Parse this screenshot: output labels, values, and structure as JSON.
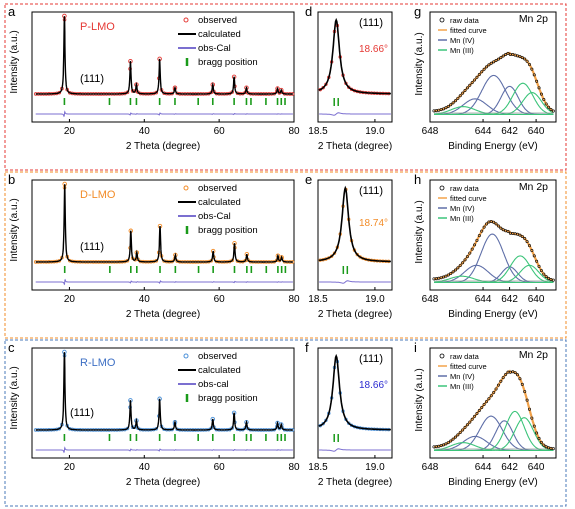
{
  "colors": {
    "frame_top": "#e53935",
    "frame_mid": "#f28c28",
    "frame_bot": "#4a78b8",
    "label_plmo": "#e53935",
    "label_dlmo": "#f28c28",
    "label_rlmo": "#3d6fc4",
    "obs_plmo": "#e53935",
    "obs_dlmo": "#f28c28",
    "obs_rlmo": "#4a90d9",
    "calc": "#000000",
    "diff": "#7b6fd0",
    "bragg": "#1a9a1a",
    "peak_plmo": "#e53935",
    "peak_dlmo": "#f28c28",
    "peak_rlmo": "#2a2ad0",
    "xps_raw": "#000000",
    "xps_fit": "#f2a24a",
    "mn4": "#5f6fa8",
    "mn3": "#3cc47a"
  },
  "chart_data": [
    {
      "panel": "a",
      "type": "line",
      "sample": "P-LMO",
      "peak_label": "(111)",
      "xlabel": "2 Theta (degree)",
      "ylabel": "Intensity (a.u.)",
      "xlim": [
        10,
        80
      ],
      "xticks": [
        20,
        40,
        60,
        80
      ],
      "legend": [
        "observed",
        "calculated",
        "obs-Cal",
        "bragg position"
      ],
      "peaks": [
        {
          "x": 18.66,
          "h": 1.0
        },
        {
          "x": 36.3,
          "h": 0.42
        },
        {
          "x": 37.9,
          "h": 0.12
        },
        {
          "x": 44.1,
          "h": 0.45
        },
        {
          "x": 48.2,
          "h": 0.08
        },
        {
          "x": 58.3,
          "h": 0.12
        },
        {
          "x": 64.0,
          "h": 0.22
        },
        {
          "x": 67.3,
          "h": 0.08
        },
        {
          "x": 75.6,
          "h": 0.07
        },
        {
          "x": 76.6,
          "h": 0.05
        }
      ],
      "bragg": [
        18.66,
        30.7,
        36.3,
        37.9,
        44.1,
        48.2,
        54.4,
        58.3,
        64.0,
        67.3,
        68.5,
        72.5,
        75.6,
        76.6,
        77.6
      ]
    },
    {
      "panel": "d",
      "type": "line",
      "peak_label": "(111)",
      "peak_value": "18.66°",
      "xlabel": "2 Theta (degree)",
      "xlim": [
        18.5,
        19.15
      ],
      "xticks": [
        "18.5",
        "19.0"
      ],
      "peak_center": 18.66
    },
    {
      "panel": "g",
      "type": "line",
      "title": "Mn 2p",
      "xlabel": "Binding Energy (eV)",
      "ylabel": "Intensity (a.u.)",
      "xlim": [
        648,
        638.5
      ],
      "xticks": [
        648,
        644,
        642,
        640
      ],
      "legend": [
        "raw data",
        "fitted curve",
        "Mn (IV)",
        "Mn (III)"
      ],
      "components": [
        {
          "kind": "Mn (IV)",
          "center": 643.2,
          "amp": 0.5,
          "width": 0.9
        },
        {
          "kind": "Mn (IV)",
          "center": 642.0,
          "amp": 0.36,
          "width": 0.65
        },
        {
          "kind": "Mn (IV)",
          "center": 644.6,
          "amp": 0.2,
          "width": 0.9
        },
        {
          "kind": "Mn (III)",
          "center": 641.0,
          "amp": 0.4,
          "width": 0.75
        },
        {
          "kind": "Mn (III)",
          "center": 640.3,
          "amp": 0.28,
          "width": 0.7
        },
        {
          "kind": "Mn (III)",
          "center": 645.5,
          "amp": 0.1,
          "width": 0.9
        }
      ]
    },
    {
      "panel": "b",
      "type": "line",
      "sample": "D-LMO",
      "peak_label": "(111)",
      "xlabel": "2 Theta (degree)",
      "ylabel": "Intensity (a.u.)",
      "xlim": [
        10,
        80
      ],
      "xticks": [
        20,
        40,
        60,
        80
      ],
      "legend": [
        "observed",
        "calculated",
        "obs-Cal",
        "bragg position"
      ],
      "peaks": [
        {
          "x": 18.74,
          "h": 1.0
        },
        {
          "x": 36.4,
          "h": 0.4
        },
        {
          "x": 38.0,
          "h": 0.12
        },
        {
          "x": 44.2,
          "h": 0.46
        },
        {
          "x": 48.3,
          "h": 0.09
        },
        {
          "x": 58.4,
          "h": 0.14
        },
        {
          "x": 64.1,
          "h": 0.24
        },
        {
          "x": 67.4,
          "h": 0.1
        },
        {
          "x": 75.7,
          "h": 0.08
        },
        {
          "x": 76.7,
          "h": 0.06
        }
      ],
      "bragg": [
        18.74,
        30.8,
        36.4,
        38.0,
        44.2,
        48.3,
        54.5,
        58.4,
        64.1,
        67.4,
        68.6,
        72.6,
        75.7,
        76.7,
        77.7
      ]
    },
    {
      "panel": "e",
      "type": "line",
      "peak_label": "(111)",
      "peak_value": "18.74°",
      "xlabel": "2 Theta (degree)",
      "xlim": [
        18.5,
        19.15
      ],
      "xticks": [
        "18.5",
        "19.0"
      ],
      "peak_center": 18.74
    },
    {
      "panel": "h",
      "type": "line",
      "title": "Mn 2p",
      "xlabel": "Binding Energy (eV)",
      "ylabel": "Intensity (a.u.)",
      "xlim": [
        648,
        638.5
      ],
      "xticks": [
        648,
        644,
        642,
        640
      ],
      "legend": [
        "raw data",
        "fitted curve",
        "Mn (IV)",
        "Mn (III)"
      ],
      "components": [
        {
          "kind": "Mn (IV)",
          "center": 643.3,
          "amp": 0.62,
          "width": 0.85
        },
        {
          "kind": "Mn (IV)",
          "center": 644.5,
          "amp": 0.22,
          "width": 0.9
        },
        {
          "kind": "Mn (IV)",
          "center": 642.0,
          "amp": 0.2,
          "width": 0.6
        },
        {
          "kind": "Mn (III)",
          "center": 641.2,
          "amp": 0.34,
          "width": 0.75
        },
        {
          "kind": "Mn (III)",
          "center": 640.5,
          "amp": 0.22,
          "width": 0.7
        },
        {
          "kind": "Mn (III)",
          "center": 645.6,
          "amp": 0.08,
          "width": 0.9
        }
      ]
    },
    {
      "panel": "c",
      "type": "line",
      "sample": "R-LMO",
      "peak_label": "(111)",
      "xlabel": "2 Theta (degree)",
      "ylabel": "Intensity (a.u.)",
      "xlim": [
        10,
        80
      ],
      "xticks": [
        20,
        40,
        60,
        80
      ],
      "legend": [
        "observed",
        "calculated",
        "obs-cal",
        "bragg position"
      ],
      "peaks": [
        {
          "x": 18.66,
          "h": 1.0
        },
        {
          "x": 36.3,
          "h": 0.38
        },
        {
          "x": 37.9,
          "h": 0.12
        },
        {
          "x": 44.1,
          "h": 0.4
        },
        {
          "x": 48.2,
          "h": 0.1
        },
        {
          "x": 58.3,
          "h": 0.14
        },
        {
          "x": 64.0,
          "h": 0.22
        },
        {
          "x": 67.3,
          "h": 0.1
        },
        {
          "x": 75.6,
          "h": 0.09
        },
        {
          "x": 76.6,
          "h": 0.07
        }
      ],
      "bragg": [
        18.66,
        30.7,
        36.3,
        37.9,
        44.1,
        48.2,
        54.4,
        58.3,
        64.0,
        67.3,
        68.5,
        72.5,
        75.6,
        76.6,
        77.6
      ]
    },
    {
      "panel": "f",
      "type": "line",
      "peak_label": "(111)",
      "peak_value": "18.66°",
      "xlabel": "2 Theta (degree)",
      "xlim": [
        18.5,
        19.15
      ],
      "xticks": [
        "18.5",
        "19.0"
      ],
      "peak_center": 18.66
    },
    {
      "panel": "i",
      "type": "line",
      "title": "Mn 2p",
      "xlabel": "Binding Energy (eV)",
      "ylabel": "Intensity (a.u.)",
      "xlim": [
        648,
        638.5
      ],
      "xticks": [
        648,
        644,
        642,
        640
      ],
      "legend": [
        "raw data",
        "fitted curve",
        "Mn (IV)",
        "Mn (III)"
      ],
      "components": [
        {
          "kind": "Mn (IV)",
          "center": 643.4,
          "amp": 0.44,
          "width": 0.85
        },
        {
          "kind": "Mn (IV)",
          "center": 642.4,
          "amp": 0.38,
          "width": 0.65
        },
        {
          "kind": "Mn (IV)",
          "center": 644.6,
          "amp": 0.18,
          "width": 0.9
        },
        {
          "kind": "Mn (III)",
          "center": 641.6,
          "amp": 0.5,
          "width": 0.7
        },
        {
          "kind": "Mn (III)",
          "center": 640.9,
          "amp": 0.42,
          "width": 0.7
        },
        {
          "kind": "Mn (III)",
          "center": 645.5,
          "amp": 0.1,
          "width": 0.9
        }
      ]
    }
  ]
}
